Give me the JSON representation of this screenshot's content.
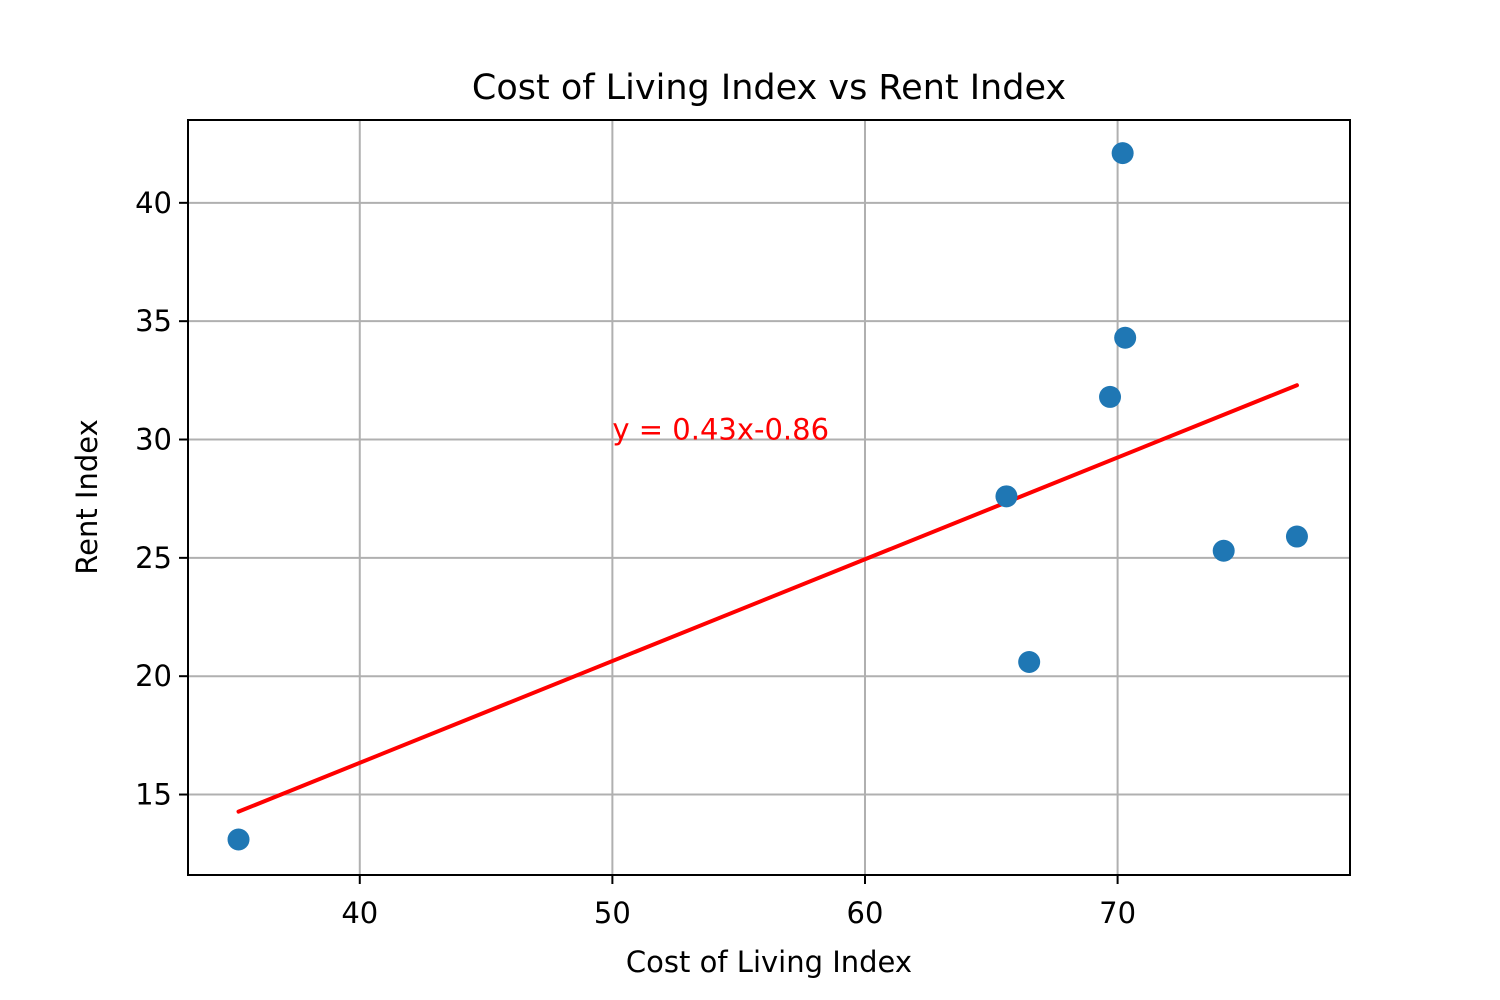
{
  "chart_data": {
    "type": "scatter",
    "title": "Cost of Living Index vs Rent Index",
    "xlabel": "Cost of Living Index",
    "ylabel": "Rent Index",
    "xlim": [
      33.2,
      79.2
    ],
    "ylim": [
      11.6,
      43.5
    ],
    "xticks": [
      40,
      50,
      60,
      70
    ],
    "yticks": [
      15,
      20,
      25,
      30,
      35,
      40
    ],
    "grid": true,
    "series": [
      {
        "points": [
          {
            "x": 35.2,
            "y": 13.1
          },
          {
            "x": 65.6,
            "y": 27.6
          },
          {
            "x": 66.5,
            "y": 20.6
          },
          {
            "x": 69.7,
            "y": 31.8
          },
          {
            "x": 70.2,
            "y": 42.1
          },
          {
            "x": 70.3,
            "y": 34.3
          },
          {
            "x": 74.2,
            "y": 25.3
          },
          {
            "x": 77.1,
            "y": 25.9
          }
        ],
        "color": "#1f77b4"
      }
    ],
    "trendline": {
      "slope": 0.43,
      "intercept": -0.86,
      "x_range": [
        35.2,
        77.1
      ],
      "color": "#ff0000",
      "label": "y = 0.43x-0.86",
      "label_x": 50,
      "label_y": 30
    }
  }
}
